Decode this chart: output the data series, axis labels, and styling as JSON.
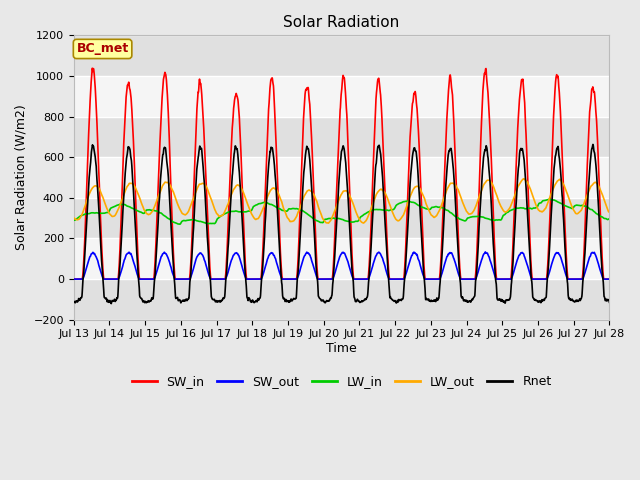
{
  "title": "Solar Radiation",
  "xlabel": "Time",
  "ylabel": "Solar Radiation (W/m2)",
  "ylim": [
    -200,
    1200
  ],
  "yticks": [
    -200,
    0,
    200,
    400,
    600,
    800,
    1000,
    1200
  ],
  "label_box_text": "BC_met",
  "legend_labels": [
    "SW_in",
    "SW_out",
    "LW_in",
    "LW_out",
    "Rnet"
  ],
  "colors": {
    "SW_in": "#ff0000",
    "SW_out": "#0000ff",
    "LW_in": "#00cc00",
    "LW_out": "#ffaa00",
    "Rnet": "#000000"
  },
  "line_widths": {
    "SW_in": 1.2,
    "SW_out": 1.2,
    "LW_in": 1.2,
    "LW_out": 1.2,
    "Rnet": 1.2
  },
  "background_color": "#e8e8e8",
  "plot_bg_color": "#e8e8e8",
  "band_colors": [
    "#e0e0e0",
    "#f5f5f5"
  ],
  "title_fontsize": 11,
  "axis_label_fontsize": 9,
  "tick_fontsize": 8,
  "legend_fontsize": 9,
  "n_days": 15,
  "start_day": 13,
  "points_per_day": 288
}
